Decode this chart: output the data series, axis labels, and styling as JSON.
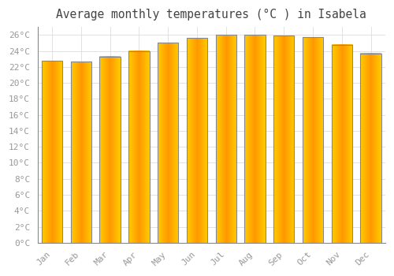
{
  "title": "Average monthly temperatures (°C ) in Isabela",
  "months": [
    "Jan",
    "Feb",
    "Mar",
    "Apr",
    "May",
    "Jun",
    "Jul",
    "Aug",
    "Sep",
    "Oct",
    "Nov",
    "Dec"
  ],
  "values": [
    22.8,
    22.7,
    23.3,
    24.0,
    25.0,
    25.6,
    26.0,
    26.0,
    25.9,
    25.7,
    24.8,
    23.7
  ],
  "bar_color_center": "#FFA500",
  "bar_color_edge": "#FFD000",
  "bar_border_color": "#888888",
  "background_color": "#FFFFFF",
  "plot_bg_color": "#FFFFFF",
  "grid_color": "#DDDDDD",
  "ylim": [
    0,
    27
  ],
  "ytick_step": 2,
  "title_fontsize": 10.5,
  "tick_fontsize": 8,
  "tick_color": "#999999",
  "axis_color": "#888888",
  "font_family": "monospace"
}
